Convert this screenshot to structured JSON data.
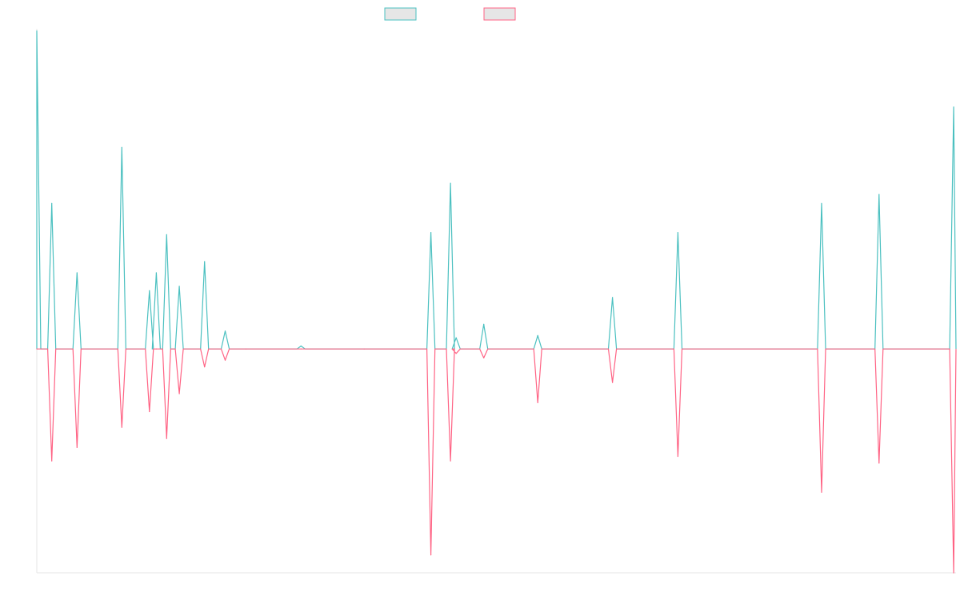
{
  "chart_data": {
    "type": "line",
    "title": "",
    "xlabel": "",
    "ylabel": "",
    "legend_position": "top-center",
    "grid": false,
    "baseline": 0,
    "ylim": [
      -100,
      143
    ],
    "x": [
      0,
      1.3,
      3.5,
      7.4,
      9.8,
      10.4,
      11.3,
      12.4,
      14.6,
      16.4,
      18.2,
      23,
      28.5,
      34.3,
      36,
      36.5,
      38.9,
      43.6,
      50.1,
      55.8,
      68.3,
      73.3,
      79.8
    ],
    "series": [
      {
        "name": "",
        "color": "#4bc0c0",
        "values": [
          142,
          65,
          34,
          90,
          26,
          34,
          51,
          28,
          39,
          8,
          0,
          1.3,
          0,
          52,
          74,
          5,
          11,
          6,
          23,
          52,
          65,
          69,
          108
        ]
      },
      {
        "name": "",
        "color": "#ff6384",
        "values": [
          0,
          -50,
          -44,
          -35,
          -28,
          0,
          -40,
          -20,
          -8,
          -5,
          0,
          0,
          0,
          -92,
          -50,
          -2,
          -4,
          -24,
          -15,
          -48,
          -64,
          -51,
          -100
        ]
      }
    ]
  }
}
